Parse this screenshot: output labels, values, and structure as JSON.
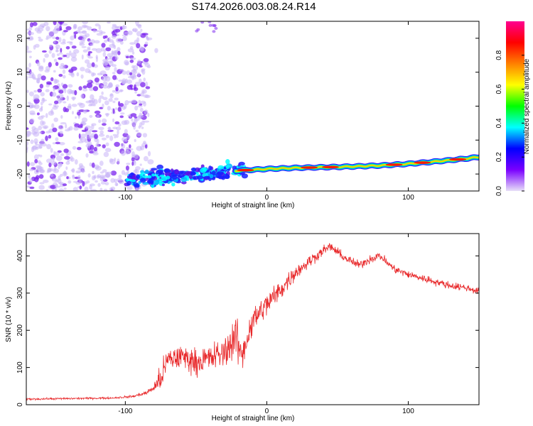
{
  "title": "S174.2026.003.08.24.R14",
  "colors": {
    "trace": "#e8282a",
    "axis": "#000000",
    "speckle": "#7a3cff"
  },
  "chart_data": [
    {
      "type": "heatmap",
      "title": "S174.2026.003.08.24.R14",
      "xlabel": "Height of straight line (km)",
      "ylabel": "Frequency (Hz)",
      "xlim": [
        -170,
        150
      ],
      "ylim": [
        -25,
        25
      ],
      "x_ticks": [
        -100,
        0,
        100
      ],
      "x_tick_labels": [
        "-100",
        "0",
        "100"
      ],
      "y_ticks": [
        -20,
        -10,
        0,
        10,
        20
      ],
      "y_tick_labels": [
        "-20",
        "-10",
        "0",
        "10",
        "20"
      ],
      "colorbar": {
        "label": "Normalized spectral amplitude",
        "range": [
          0,
          1
        ],
        "ticks": [
          0.0,
          0.2,
          0.4,
          0.6,
          0.8
        ],
        "tick_labels": [
          "0.0",
          "0.2",
          "0.4",
          "0.6",
          "0.8"
        ],
        "colormap": [
          "#e8e0f8",
          "#7a00ff",
          "#0000ff",
          "#00ffff",
          "#00ff00",
          "#ffff00",
          "#ff8000",
          "#ff0000",
          "#ff0090"
        ]
      },
      "ridge": {
        "description": "narrowband Doppler line",
        "x": [
          -100,
          -80,
          -60,
          -40,
          -20,
          0,
          20,
          40,
          60,
          80,
          100,
          120,
          140,
          150
        ],
        "frequency": [
          -22,
          -21,
          -20.5,
          -20,
          -19,
          -18.5,
          -18.2,
          -18,
          -17.8,
          -17.5,
          -17,
          -16.3,
          -15.5,
          -15
        ]
      }
    },
    {
      "type": "line",
      "xlabel": "Height of straight line (km)",
      "ylabel": "SNR (10 * v/v)",
      "xlim": [
        -170,
        150
      ],
      "ylim": [
        0,
        460
      ],
      "x_ticks": [
        -100,
        0,
        100
      ],
      "x_tick_labels": [
        "-100",
        "0",
        "100"
      ],
      "y_ticks": [
        0,
        100,
        200,
        300,
        400
      ],
      "y_tick_labels": [
        "0",
        "100",
        "200",
        "300",
        "400"
      ],
      "series": [
        {
          "name": "SNR",
          "x": [
            -170,
            -150,
            -130,
            -110,
            -95,
            -85,
            -80,
            -75,
            -70,
            -60,
            -50,
            -40,
            -30,
            -22,
            -18,
            -10,
            0,
            10,
            20,
            30,
            40,
            45,
            55,
            65,
            75,
            80,
            90,
            100,
            110,
            120,
            130,
            140,
            150
          ],
          "values": [
            15,
            16,
            17,
            18,
            22,
            32,
            45,
            70,
            120,
            130,
            115,
            125,
            140,
            185,
            130,
            225,
            270,
            310,
            355,
            385,
            415,
            425,
            395,
            375,
            395,
            400,
            365,
            350,
            340,
            330,
            320,
            315,
            305
          ],
          "noise": [
            4,
            4,
            4,
            4,
            5,
            8,
            15,
            55,
            50,
            50,
            50,
            55,
            60,
            85,
            70,
            55,
            50,
            40,
            30,
            25,
            18,
            18,
            17,
            17,
            17,
            17,
            16,
            15,
            15,
            15,
            14,
            14,
            14
          ]
        }
      ]
    }
  ]
}
